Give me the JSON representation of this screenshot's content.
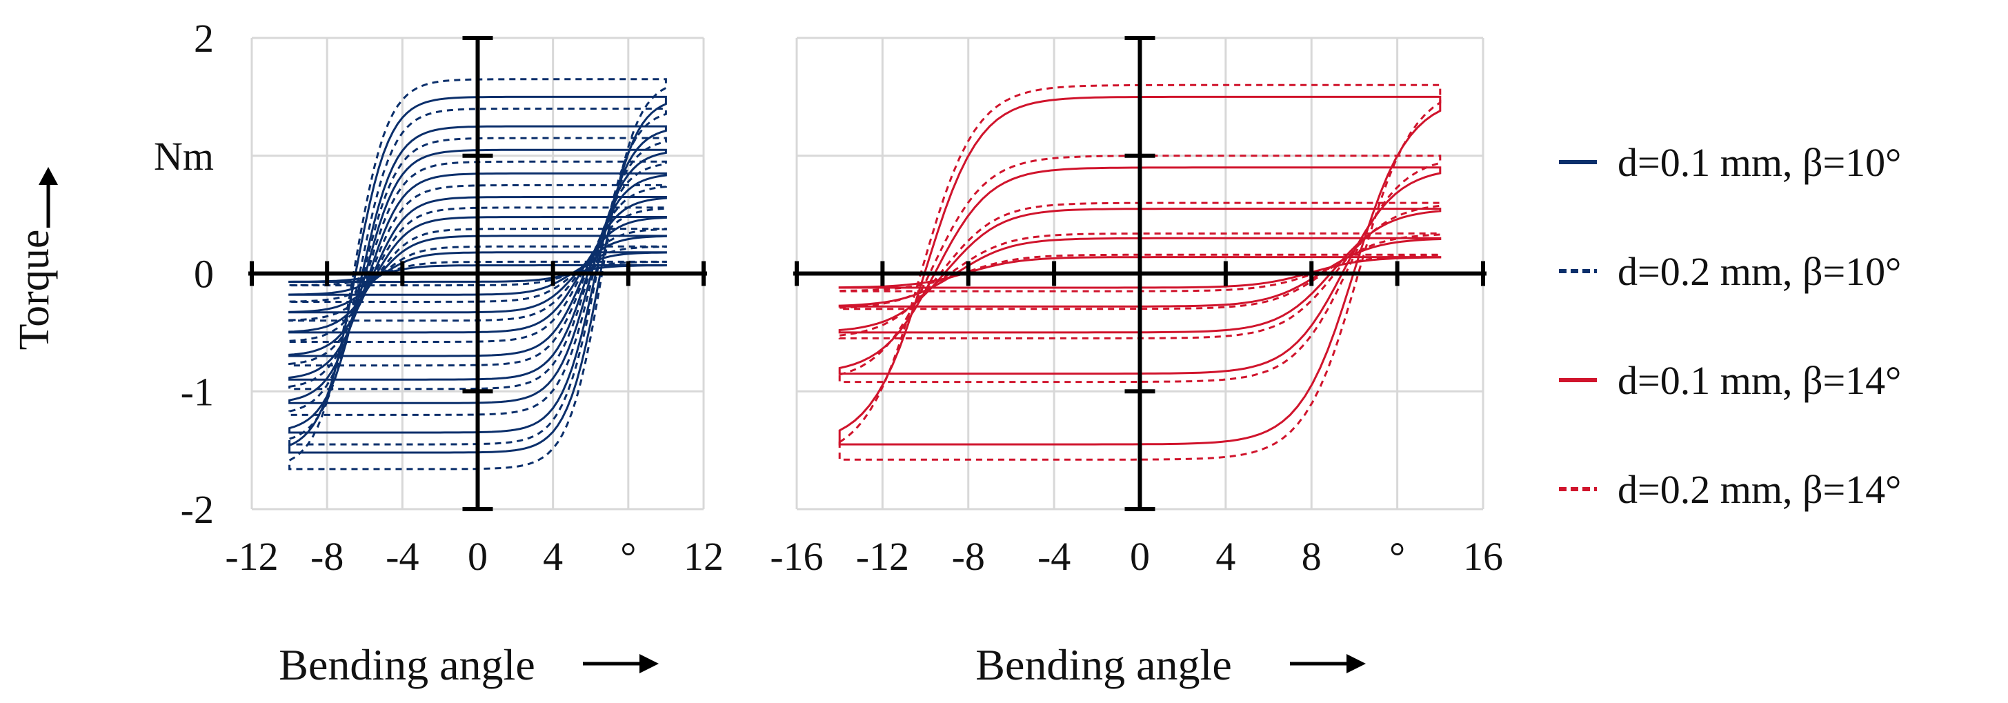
{
  "colors": {
    "blue": "#0b2f6b",
    "red": "#d0142c",
    "grid": "#d8d8d8",
    "axis": "#000000"
  },
  "ylabel": "Torque",
  "yunit": "Nm",
  "legend": {
    "items": [
      {
        "label": "d=0.1 mm, β=10°",
        "color": "#0b2f6b",
        "dash": "solid"
      },
      {
        "label": "d=0.2 mm, β=10°",
        "color": "#0b2f6b",
        "dash": "dotted"
      },
      {
        "label": "d=0.1 mm, β=14°",
        "color": "#d0142c",
        "dash": "solid"
      },
      {
        "label": "d=0.2 mm, β=14°",
        "color": "#d0142c",
        "dash": "dotted"
      }
    ]
  },
  "chart_data": [
    {
      "type": "line",
      "xlabel": "Bending angle",
      "xunit": "°",
      "ylabel": "Torque",
      "yunit": "Nm",
      "xlim": [
        -12,
        12
      ],
      "ylim": [
        -2,
        2
      ],
      "xticks": [
        "-12",
        "-8",
        "-4",
        "0",
        "4",
        "°",
        "12"
      ],
      "xtick_values": [
        -12,
        -8,
        -4,
        0,
        4,
        8,
        12
      ],
      "yticks": [
        "-2",
        "-1",
        "0",
        "Nm",
        "2"
      ],
      "ytick_values": [
        -2,
        -1,
        0,
        1,
        2
      ],
      "grid": true,
      "series": [
        {
          "name": "d=0.1 mm, β=10°",
          "color": "#0b2f6b",
          "dash": "solid",
          "x_range": [
            -10,
            10
          ],
          "loops": [
            {
              "x_min": -10,
              "x_max": 10,
              "t_min": -1.52,
              "t_max": 1.5,
              "x0_pos": -6.5,
              "x0_neg": 6.5
            },
            {
              "x_min": -10,
              "x_max": 10,
              "t_min": -1.35,
              "t_max": 1.25,
              "x0_pos": -6.2,
              "x0_neg": 6.2
            },
            {
              "x_min": -10,
              "x_max": 10,
              "t_min": -1.1,
              "t_max": 1.05,
              "x0_pos": -6,
              "x0_neg": 6
            },
            {
              "x_min": -10,
              "x_max": 10,
              "t_min": -0.9,
              "t_max": 0.85,
              "x0_pos": -5.8,
              "x0_neg": 5.8
            },
            {
              "x_min": -10,
              "x_max": 10,
              "t_min": -0.7,
              "t_max": 0.65,
              "x0_pos": -5.6,
              "x0_neg": 5.6
            },
            {
              "x_min": -10,
              "x_max": 10,
              "t_min": -0.5,
              "t_max": 0.48,
              "x0_pos": -5.4,
              "x0_neg": 5.4
            },
            {
              "x_min": -10,
              "x_max": 10,
              "t_min": -0.33,
              "t_max": 0.32,
              "x0_pos": -5.2,
              "x0_neg": 5.2
            },
            {
              "x_min": -10,
              "x_max": 10,
              "t_min": -0.18,
              "t_max": 0.18,
              "x0_pos": -5,
              "x0_neg": 5
            },
            {
              "x_min": -10,
              "x_max": 10,
              "t_min": -0.07,
              "t_max": 0.07,
              "x0_pos": -5,
              "x0_neg": 5
            }
          ]
        },
        {
          "name": "d=0.2 mm, β=10°",
          "color": "#0b2f6b",
          "dash": "dotted",
          "x_range": [
            -10,
            10
          ],
          "loops": [
            {
              "x_min": -10,
              "x_max": 10,
              "t_min": -1.66,
              "t_max": 1.65,
              "x0_pos": -6.6,
              "x0_neg": 6.6
            },
            {
              "x_min": -10,
              "x_max": 10,
              "t_min": -1.45,
              "t_max": 1.4,
              "x0_pos": -6.3,
              "x0_neg": 6.3
            },
            {
              "x_min": -10,
              "x_max": 10,
              "t_min": -1.2,
              "t_max": 1.15,
              "x0_pos": -6.1,
              "x0_neg": 6.1
            },
            {
              "x_min": -10,
              "x_max": 10,
              "t_min": -0.98,
              "t_max": 0.95,
              "x0_pos": -5.9,
              "x0_neg": 5.9
            },
            {
              "x_min": -10,
              "x_max": 10,
              "t_min": -0.78,
              "t_max": 0.75,
              "x0_pos": -5.7,
              "x0_neg": 5.7
            },
            {
              "x_min": -10,
              "x_max": 10,
              "t_min": -0.58,
              "t_max": 0.56,
              "x0_pos": -5.5,
              "x0_neg": 5.5
            },
            {
              "x_min": -10,
              "x_max": 10,
              "t_min": -0.4,
              "t_max": 0.38,
              "x0_pos": -5.3,
              "x0_neg": 5.3
            },
            {
              "x_min": -10,
              "x_max": 10,
              "t_min": -0.24,
              "t_max": 0.23,
              "x0_pos": -5.1,
              "x0_neg": 5.1
            },
            {
              "x_min": -10,
              "x_max": 10,
              "t_min": -0.1,
              "t_max": 0.1,
              "x0_pos": -5,
              "x0_neg": 5
            }
          ]
        }
      ]
    },
    {
      "type": "line",
      "xlabel": "Bending angle",
      "xunit": "°",
      "ylabel": "Torque",
      "yunit": "Nm",
      "xlim": [
        -16,
        16
      ],
      "ylim": [
        -2,
        2
      ],
      "xticks": [
        "-16",
        "-12",
        "-8",
        "-4",
        "0",
        "4",
        "8",
        "°",
        "16"
      ],
      "xtick_values": [
        -16,
        -12,
        -8,
        -4,
        0,
        4,
        8,
        12,
        16
      ],
      "yticks": [
        "-2",
        "-1",
        "0",
        "1",
        "2"
      ],
      "ytick_values": [
        -2,
        -1,
        0,
        1,
        2
      ],
      "grid": true,
      "series": [
        {
          "name": "d=0.1 mm, β=14°",
          "color": "#d0142c",
          "dash": "solid",
          "x_range": [
            -14,
            14
          ],
          "loops": [
            {
              "x_min": -14,
              "x_max": 14,
              "t_min": -1.45,
              "t_max": 1.5,
              "x0_pos": -10,
              "x0_neg": 10
            },
            {
              "x_min": -14,
              "x_max": 14,
              "t_min": -0.85,
              "t_max": 0.9,
              "x0_pos": -9.5,
              "x0_neg": 9.5
            },
            {
              "x_min": -14,
              "x_max": 14,
              "t_min": -0.5,
              "t_max": 0.55,
              "x0_pos": -9,
              "x0_neg": 9
            },
            {
              "x_min": -14,
              "x_max": 14,
              "t_min": -0.28,
              "t_max": 0.3,
              "x0_pos": -8.5,
              "x0_neg": 8.5
            },
            {
              "x_min": -14,
              "x_max": 14,
              "t_min": -0.12,
              "t_max": 0.14,
              "x0_pos": -8,
              "x0_neg": 8
            }
          ]
        },
        {
          "name": "d=0.2 mm, β=14°",
          "color": "#d0142c",
          "dash": "dotted",
          "x_range": [
            -14,
            14
          ],
          "loops": [
            {
              "x_min": -14,
              "x_max": 14,
              "t_min": -1.58,
              "t_max": 1.6,
              "x0_pos": -10.2,
              "x0_neg": 10.2
            },
            {
              "x_min": -14,
              "x_max": 14,
              "t_min": -0.92,
              "t_max": 1.0,
              "x0_pos": -9.7,
              "x0_neg": 9.7
            },
            {
              "x_min": -14,
              "x_max": 14,
              "t_min": -0.55,
              "t_max": 0.6,
              "x0_pos": -9.2,
              "x0_neg": 9.2
            },
            {
              "x_min": -14,
              "x_max": 14,
              "t_min": -0.3,
              "t_max": 0.34,
              "x0_pos": -8.7,
              "x0_neg": 8.7
            },
            {
              "x_min": -14,
              "x_max": 14,
              "t_min": -0.15,
              "t_max": 0.16,
              "x0_pos": -8.2,
              "x0_neg": 8.2
            }
          ]
        }
      ]
    }
  ]
}
